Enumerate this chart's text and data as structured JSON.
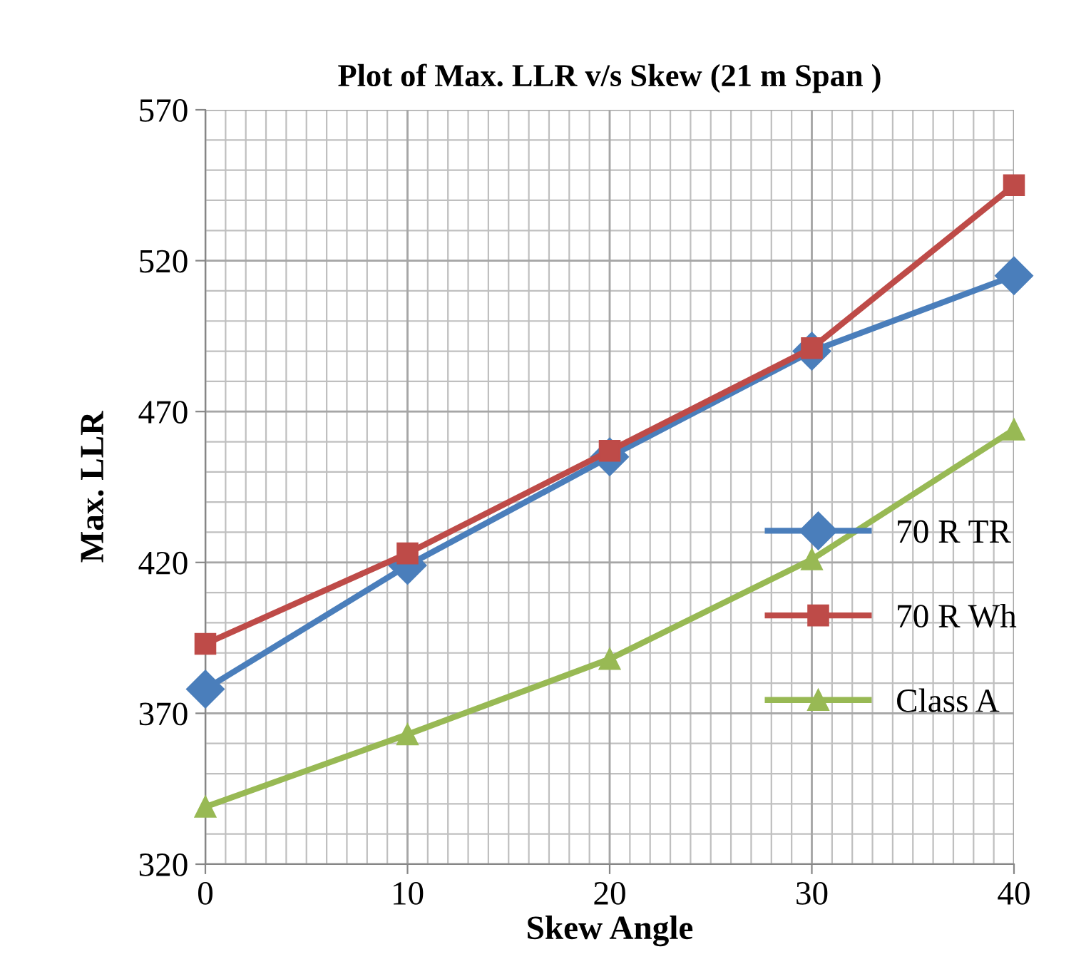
{
  "chart_data": {
    "type": "line",
    "title": "Plot of Max. LLR v/s Skew (21 m Span )",
    "xlabel": "Skew Angle",
    "ylabel": "Max. LLR",
    "x": [
      0,
      10,
      20,
      30,
      40
    ],
    "series": [
      {
        "name": "70 R TR",
        "color": "#4a7ebb",
        "marker": "diamond",
        "values": [
          378,
          419,
          455,
          490,
          515
        ]
      },
      {
        "name": "70 R Wh",
        "color": "#be4b48",
        "marker": "square",
        "values": [
          393,
          423,
          457,
          491,
          545
        ]
      },
      {
        "name": "Class A",
        "color": "#98b954",
        "marker": "triangle",
        "values": [
          339,
          363,
          388,
          421,
          464
        ]
      }
    ],
    "xlim": [
      0,
      40
    ],
    "xticks": [
      0,
      10,
      20,
      30,
      40
    ],
    "ylim": [
      320,
      570
    ],
    "yticks": [
      320,
      370,
      420,
      470,
      520,
      570
    ],
    "grid": true,
    "legend": "right",
    "line_style": "solid"
  }
}
